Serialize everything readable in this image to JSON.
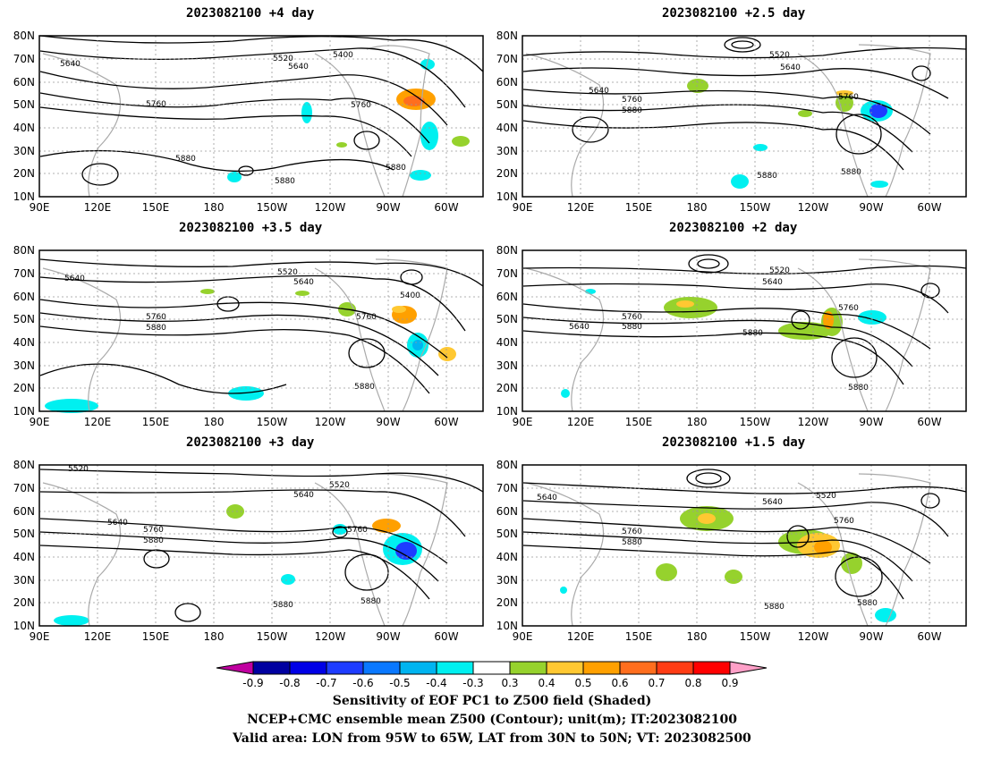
{
  "panels": [
    {
      "title": "2023082100  +4 day"
    },
    {
      "title": "2023082100  +2.5 day"
    },
    {
      "title": "2023082100  +3.5 day"
    },
    {
      "title": "2023082100  +2 day"
    },
    {
      "title": "2023082100  +3 day"
    },
    {
      "title": "2023082100  +1.5 day"
    }
  ],
  "axes": {
    "lat_labels": [
      "80N",
      "70N",
      "60N",
      "50N",
      "40N",
      "30N",
      "20N",
      "10N"
    ],
    "lon_labels": [
      "90E",
      "120E",
      "150E",
      "180",
      "150W",
      "120W",
      "90W",
      "60W"
    ]
  },
  "contour_labels": {
    "p0": [
      "5640",
      "5520",
      "5400",
      "5640",
      "5760",
      "5760",
      "5880",
      "5880",
      "5880"
    ],
    "p1": [
      "5520",
      "5640",
      "5640",
      "5760",
      "5880",
      "5760",
      "5880",
      "5880"
    ],
    "p2": [
      "5520",
      "5640",
      "5640",
      "5760",
      "5880",
      "5760",
      "5400",
      "5880"
    ],
    "p3": [
      "5520",
      "5640",
      "5640",
      "5760",
      "5880",
      "5880",
      "5760",
      "5880"
    ],
    "p4": [
      "5520",
      "5520",
      "5640",
      "5640",
      "5760",
      "5880",
      "5760",
      "5880",
      "5880"
    ],
    "p5": [
      "5640",
      "5640",
      "5520",
      "5760",
      "5880",
      "5760",
      "5880",
      "5880"
    ]
  },
  "colorbar": {
    "labels": [
      "-0.9",
      "-0.8",
      "-0.7",
      "-0.6",
      "-0.5",
      "-0.4",
      "-0.3",
      "0.3",
      "0.4",
      "0.5",
      "0.6",
      "0.7",
      "0.8",
      "0.9"
    ],
    "colors": [
      "#0000a0",
      "#0000e6",
      "#1e3cff",
      "#0a78ff",
      "#00b4f0",
      "#00f0f0",
      "#ffffff",
      "#96d22d",
      "#ffc832",
      "#ffa000",
      "#ff6e1e",
      "#ff3c14",
      "#ff0000"
    ],
    "low_end_color": "#c000a0",
    "high_end_color": "#ffa0c8"
  },
  "caption": {
    "line1": "Sensitivity of EOF PC1 to Z500 field (Shaded)",
    "line2": "NCEP+CMC ensemble mean Z500 (Contour); unit(m); IT:2023082100",
    "line3": "Valid area: LON from 95W to 65W, LAT from 30N to 50N; VT: 2023082500"
  }
}
